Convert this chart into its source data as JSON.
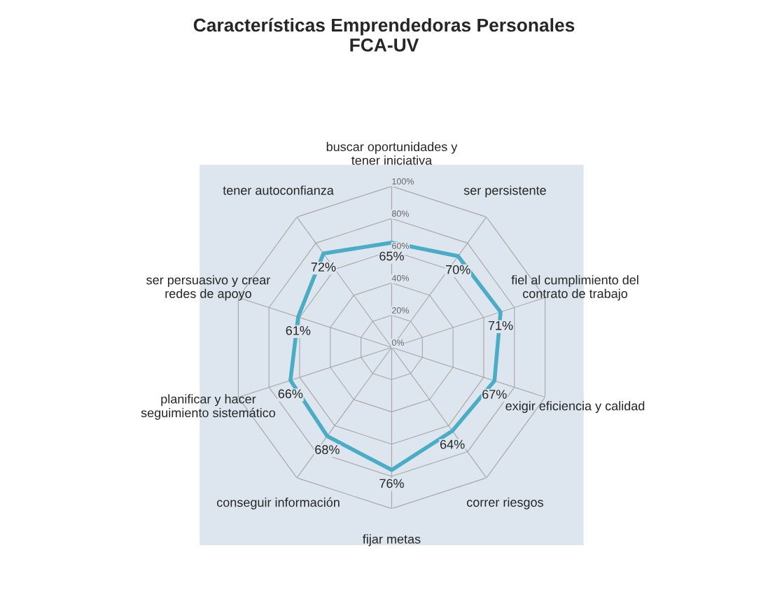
{
  "chart_data": {
    "type": "radar",
    "title": "Características Emprendedoras Personales\nFCA-UV",
    "categories": [
      "buscar oportunidades y\ntener iniciativa",
      "ser persistente",
      "fiel al cumplimiento del\ncontrato de trabajo",
      "exigir eficiencia y calidad",
      "correr riesgos",
      "fijar metas",
      "conseguir información",
      "planificar y hacer\nseguimiento sistemático",
      "ser persuasivo y crear\nredes de apoyo",
      "tener autoconfianza"
    ],
    "series": [
      {
        "color": "#4bacc6",
        "values": [
          65,
          70,
          71,
          67,
          64,
          76,
          68,
          66,
          61,
          72
        ],
        "value_labels": [
          "65%",
          "70%",
          "71%",
          "67%",
          "64%",
          "76%",
          "68%",
          "66%",
          "61%",
          "72%"
        ]
      }
    ],
    "ylim": [
      0,
      100
    ],
    "yticks": [
      {
        "value": 0,
        "label": "0%"
      },
      {
        "value": 20,
        "label": "20%"
      },
      {
        "value": 40,
        "label": "40%"
      },
      {
        "value": 60,
        "label": "60%"
      },
      {
        "value": 80,
        "label": "80%"
      },
      {
        "value": 100,
        "label": "100%"
      }
    ],
    "grid": true,
    "marker": "none"
  }
}
